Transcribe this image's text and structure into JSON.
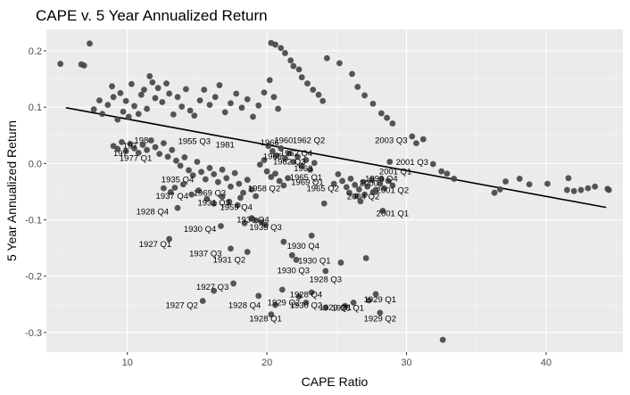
{
  "chart_data": {
    "type": "scatter",
    "title": "CAPE v. 5 Year Annualized Return",
    "xlabel": "CAPE Ratio",
    "ylabel": "5 Year Annualized Return",
    "xlim": [
      4.2,
      45.5
    ],
    "ylim": [
      -0.335,
      0.238
    ],
    "xticks": [
      10,
      20,
      30,
      40
    ],
    "yticks": [
      -0.3,
      -0.2,
      -0.1,
      0.0,
      0.1,
      0.2
    ],
    "ytick_labels": [
      "-0.3",
      "-0.2",
      "-0.1",
      "0.0",
      "0.1",
      "0.2"
    ],
    "grid": true,
    "colors": {
      "panel": "#ebebeb",
      "grid_major": "#ffffff",
      "points": "#474747",
      "trend": "#000000"
    },
    "trend_line": {
      "x": [
        5.6,
        44.3
      ],
      "y": [
        0.099,
        -0.078
      ]
    },
    "points": [
      [
        5.2,
        0.177
      ],
      [
        6.7,
        0.176
      ],
      [
        6.9,
        0.174
      ],
      [
        7.3,
        0.213
      ],
      [
        7.6,
        0.096
      ],
      [
        8.0,
        0.112
      ],
      [
        8.2,
        0.088
      ],
      [
        8.6,
        0.104
      ],
      [
        8.9,
        0.137
      ],
      [
        9.0,
        0.118
      ],
      [
        9.3,
        0.078
      ],
      [
        9.5,
        0.125
      ],
      [
        9.7,
        0.092
      ],
      [
        9.9,
        0.111
      ],
      [
        10.1,
        0.083
      ],
      [
        10.3,
        0.141
      ],
      [
        10.5,
        0.102
      ],
      [
        10.8,
        0.088
      ],
      [
        11.0,
        0.122
      ],
      [
        11.2,
        0.131
      ],
      [
        11.4,
        0.097
      ],
      [
        11.6,
        0.155
      ],
      [
        11.8,
        0.144
      ],
      [
        12.0,
        0.116
      ],
      [
        12.2,
        0.134
      ],
      [
        12.5,
        0.109
      ],
      [
        12.8,
        0.142
      ],
      [
        13.0,
        0.124
      ],
      [
        13.3,
        0.087
      ],
      [
        13.6,
        0.118
      ],
      [
        13.9,
        0.101
      ],
      [
        14.2,
        0.132
      ],
      [
        14.5,
        0.094
      ],
      [
        14.8,
        0.085
      ],
      [
        15.2,
        0.112
      ],
      [
        15.5,
        0.131
      ],
      [
        15.9,
        0.104
      ],
      [
        16.3,
        0.118
      ],
      [
        16.6,
        0.139
      ],
      [
        17.0,
        0.091
      ],
      [
        17.4,
        0.107
      ],
      [
        17.8,
        0.124
      ],
      [
        18.2,
        0.099
      ],
      [
        18.6,
        0.114
      ],
      [
        19.0,
        0.083
      ],
      [
        19.4,
        0.103
      ],
      [
        19.8,
        0.126
      ],
      [
        20.2,
        0.148
      ],
      [
        20.5,
        0.118
      ],
      [
        20.8,
        0.097
      ],
      [
        20.3,
        0.214
      ],
      [
        20.6,
        0.211
      ],
      [
        21.0,
        0.205
      ],
      [
        21.3,
        0.196
      ],
      [
        21.7,
        0.183
      ],
      [
        21.9,
        0.173
      ],
      [
        22.3,
        0.167
      ],
      [
        22.5,
        0.153
      ],
      [
        22.9,
        0.142
      ],
      [
        23.3,
        0.131
      ],
      [
        23.7,
        0.122
      ],
      [
        24.0,
        0.111
      ],
      [
        24.3,
        0.187
      ],
      [
        25.2,
        0.178
      ],
      [
        26.1,
        0.159
      ],
      [
        26.5,
        0.136
      ],
      [
        27.0,
        0.121
      ],
      [
        27.6,
        0.106
      ],
      [
        28.2,
        0.089
      ],
      [
        28.6,
        0.081
      ],
      [
        29.0,
        0.071
      ],
      [
        30.4,
        0.048
      ],
      [
        30.7,
        0.036
      ],
      [
        31.2,
        0.043
      ],
      [
        31.9,
        -0.001
      ],
      [
        32.5,
        -0.014
      ],
      [
        32.9,
        -0.018
      ],
      [
        33.4,
        -0.027
      ],
      [
        36.3,
        -0.052
      ],
      [
        36.7,
        -0.046
      ],
      [
        37.1,
        -0.032
      ],
      [
        38.1,
        -0.027
      ],
      [
        38.8,
        -0.037
      ],
      [
        40.1,
        -0.036
      ],
      [
        41.6,
        -0.026
      ],
      [
        41.5,
        -0.047
      ],
      [
        42.0,
        -0.049
      ],
      [
        42.5,
        -0.047
      ],
      [
        43.0,
        -0.044
      ],
      [
        43.5,
        -0.041
      ],
      [
        44.4,
        -0.045
      ],
      [
        44.5,
        -0.047
      ],
      [
        9.0,
        0.031
      ],
      [
        9.3,
        0.026
      ],
      [
        9.6,
        0.038
      ],
      [
        9.9,
        0.022
      ],
      [
        10.2,
        0.035
      ],
      [
        10.5,
        0.027
      ],
      [
        10.8,
        0.019
      ],
      [
        11.1,
        0.033
      ],
      [
        11.4,
        0.024
      ],
      [
        11.7,
        0.041
      ],
      [
        12.0,
        0.029
      ],
      [
        12.3,
        0.017
      ],
      [
        12.6,
        0.036
      ],
      [
        12.9,
        0.012
      ],
      [
        13.2,
        0.024
      ],
      [
        13.5,
        0.005
      ],
      [
        13.8,
        -0.004
      ],
      [
        14.1,
        0.011
      ],
      [
        14.4,
        -0.012
      ],
      [
        14.7,
        -0.021
      ],
      [
        15.0,
        0.003
      ],
      [
        15.3,
        -0.015
      ],
      [
        15.6,
        -0.028
      ],
      [
        15.9,
        -0.008
      ],
      [
        16.2,
        -0.019
      ],
      [
        16.5,
        -0.033
      ],
      [
        16.8,
        -0.011
      ],
      [
        17.1,
        -0.026
      ],
      [
        17.4,
        -0.041
      ],
      [
        17.7,
        -0.017
      ],
      [
        18.0,
        -0.036
      ],
      [
        18.3,
        -0.052
      ],
      [
        18.6,
        -0.029
      ],
      [
        18.9,
        -0.046
      ],
      [
        19.2,
        -0.058
      ],
      [
        13.4,
        -0.043
      ],
      [
        14.0,
        -0.037
      ],
      [
        14.6,
        -0.055
      ],
      [
        15.1,
        -0.048
      ],
      [
        15.7,
        -0.063
      ],
      [
        16.2,
        -0.071
      ],
      [
        16.8,
        -0.059
      ],
      [
        17.3,
        -0.068
      ],
      [
        17.9,
        -0.074
      ],
      [
        13.1,
        -0.051
      ],
      [
        12.6,
        -0.044
      ],
      [
        20.1,
        0.031
      ],
      [
        20.4,
        0.022
      ],
      [
        20.7,
        0.014
      ],
      [
        21.0,
        0.027
      ],
      [
        21.3,
        0.009
      ],
      [
        21.6,
        0.018
      ],
      [
        21.9,
        0.003
      ],
      [
        22.2,
        0.012
      ],
      [
        22.5,
        -0.004
      ],
      [
        22.8,
        0.006
      ],
      [
        23.1,
        -0.011
      ],
      [
        23.4,
        0.001
      ],
      [
        19.8,
        0.006
      ],
      [
        19.5,
        -0.002
      ],
      [
        20.0,
        -0.014
      ],
      [
        20.3,
        -0.024
      ],
      [
        20.6,
        -0.018
      ],
      [
        20.9,
        -0.031
      ],
      [
        21.2,
        -0.039
      ],
      [
        21.5,
        -0.026
      ],
      [
        25.1,
        -0.019
      ],
      [
        25.4,
        -0.031
      ],
      [
        25.7,
        -0.042
      ],
      [
        26.0,
        -0.027
      ],
      [
        26.3,
        -0.038
      ],
      [
        26.6,
        -0.046
      ],
      [
        26.9,
        -0.033
      ],
      [
        27.2,
        -0.041
      ],
      [
        27.5,
        -0.029
      ],
      [
        27.8,
        -0.047
      ],
      [
        28.1,
        -0.036
      ],
      [
        28.4,
        -0.044
      ],
      [
        28.7,
        -0.031
      ],
      [
        29.0,
        -0.039
      ],
      [
        25.9,
        -0.052
      ],
      [
        26.4,
        -0.058
      ],
      [
        27.0,
        -0.055
      ],
      [
        27.6,
        -0.051
      ],
      [
        28.2,
        -0.028
      ],
      [
        24.8,
        -0.036
      ],
      [
        26.7,
        -0.067
      ],
      [
        28.8,
        0.003
      ],
      [
        18.9,
        -0.097
      ],
      [
        19.2,
        -0.101
      ],
      [
        19.6,
        -0.104
      ],
      [
        19.9,
        -0.109
      ],
      [
        18.4,
        -0.106
      ],
      [
        16.7,
        -0.111
      ],
      [
        13.6,
        -0.079
      ],
      [
        18.1,
        -0.061
      ],
      [
        24.1,
        -0.071
      ],
      [
        28.3,
        -0.084
      ],
      [
        13.0,
        -0.134
      ],
      [
        17.4,
        -0.151
      ],
      [
        18.6,
        -0.157
      ],
      [
        21.2,
        -0.139
      ],
      [
        21.8,
        -0.163
      ],
      [
        22.1,
        -0.171
      ],
      [
        23.2,
        -0.128
      ],
      [
        24.2,
        -0.191
      ],
      [
        25.3,
        -0.176
      ],
      [
        27.1,
        -0.168
      ],
      [
        15.4,
        -0.244
      ],
      [
        16.2,
        -0.226
      ],
      [
        17.6,
        -0.213
      ],
      [
        19.4,
        -0.235
      ],
      [
        20.6,
        -0.251
      ],
      [
        21.1,
        -0.224
      ],
      [
        22.3,
        -0.236
      ],
      [
        22.8,
        -0.247
      ],
      [
        23.2,
        -0.229
      ],
      [
        24.2,
        -0.256
      ],
      [
        25.6,
        -0.253
      ],
      [
        26.2,
        -0.247
      ],
      [
        27.3,
        -0.243
      ],
      [
        27.8,
        -0.232
      ],
      [
        28.1,
        -0.265
      ],
      [
        20.3,
        -0.268
      ],
      [
        32.6,
        -0.313
      ]
    ],
    "annotations": [
      {
        "text": "2003 Q3",
        "x": 28.9,
        "y": 0.042
      },
      {
        "text": "1962 Q2",
        "x": 23.0,
        "y": 0.042
      },
      {
        "text": "1960",
        "x": 21.2,
        "y": 0.042
      },
      {
        "text": "1966",
        "x": 20.2,
        "y": 0.038
      },
      {
        "text": "1981",
        "x": 17.0,
        "y": 0.034
      },
      {
        "text": "1955 Q3",
        "x": 14.8,
        "y": 0.04
      },
      {
        "text": "198",
        "x": 11.0,
        "y": 0.042
      },
      {
        "text": "197",
        "x": 10.2,
        "y": 0.032
      },
      {
        "text": "197",
        "x": 9.5,
        "y": 0.019
      },
      {
        "text": "1977 Q1",
        "x": 10.6,
        "y": 0.01
      },
      {
        "text": "1962 Q4",
        "x": 22.1,
        "y": 0.019
      },
      {
        "text": "1965",
        "x": 20.4,
        "y": 0.013
      },
      {
        "text": "1962 Q3",
        "x": 21.6,
        "y": 0.004
      },
      {
        "text": "1963",
        "x": 22.6,
        "y": -0.008
      },
      {
        "text": "1965 Q1",
        "x": 22.8,
        "y": -0.024
      },
      {
        "text": "1969 Q1",
        "x": 22.9,
        "y": -0.033
      },
      {
        "text": "1965 Q2",
        "x": 24.0,
        "y": -0.044
      },
      {
        "text": "1958 Q2",
        "x": 19.8,
        "y": -0.044
      },
      {
        "text": "1935 Q4",
        "x": 13.6,
        "y": -0.028
      },
      {
        "text": "1937 Q4",
        "x": 13.2,
        "y": -0.057
      },
      {
        "text": "1931 Q3",
        "x": 16.2,
        "y": -0.069
      },
      {
        "text": "1959 Q4",
        "x": 17.8,
        "y": -0.077
      },
      {
        "text": "1969 Q3",
        "x": 15.9,
        "y": -0.052
      },
      {
        "text": "2001 Q3",
        "x": 30.4,
        "y": 0.003
      },
      {
        "text": "2001 Q1",
        "x": 29.2,
        "y": -0.014
      },
      {
        "text": "1999 Q4",
        "x": 28.2,
        "y": -0.026
      },
      {
        "text": "2000",
        "x": 27.3,
        "y": -0.034
      },
      {
        "text": "2001 Q2",
        "x": 29.0,
        "y": -0.047
      },
      {
        "text": "2004 Q2",
        "x": 26.9,
        "y": -0.058
      },
      {
        "text": "2001 Q1",
        "x": 29.0,
        "y": -0.088
      },
      {
        "text": "1928 Q4",
        "x": 11.8,
        "y": -0.085
      },
      {
        "text": "1930 Q4",
        "x": 15.2,
        "y": -0.116
      },
      {
        "text": "1935 Q3",
        "x": 19.9,
        "y": -0.113
      },
      {
        "text": "1930 Q4",
        "x": 19.0,
        "y": -0.099
      },
      {
        "text": "1930 Q4",
        "x": 22.6,
        "y": -0.146
      },
      {
        "text": "1927 Q1",
        "x": 12.0,
        "y": -0.143
      },
      {
        "text": "1937 Q3",
        "x": 15.6,
        "y": -0.159
      },
      {
        "text": "1931 Q2",
        "x": 17.3,
        "y": -0.17
      },
      {
        "text": "1930 Q1",
        "x": 23.4,
        "y": -0.172
      },
      {
        "text": "1930 Q3",
        "x": 21.9,
        "y": -0.189
      },
      {
        "text": "1928 Q3",
        "x": 24.2,
        "y": -0.205
      },
      {
        "text": "1927 Q3",
        "x": 16.1,
        "y": -0.219
      },
      {
        "text": "1928 Q4",
        "x": 22.8,
        "y": -0.232
      },
      {
        "text": "1927 Q2",
        "x": 13.9,
        "y": -0.251
      },
      {
        "text": "1928 Q4",
        "x": 18.4,
        "y": -0.251
      },
      {
        "text": "1929 Q2",
        "x": 21.2,
        "y": -0.246
      },
      {
        "text": "1930 Q2",
        "x": 22.8,
        "y": -0.251
      },
      {
        "text": "1929 Q1",
        "x": 24.9,
        "y": -0.255
      },
      {
        "text": "1928 Q1",
        "x": 25.8,
        "y": -0.256
      },
      {
        "text": "1929 Q1",
        "x": 28.1,
        "y": -0.241
      },
      {
        "text": "1928 Q1",
        "x": 19.9,
        "y": -0.275
      },
      {
        "text": "1929 Q2",
        "x": 28.1,
        "y": -0.275
      }
    ]
  }
}
